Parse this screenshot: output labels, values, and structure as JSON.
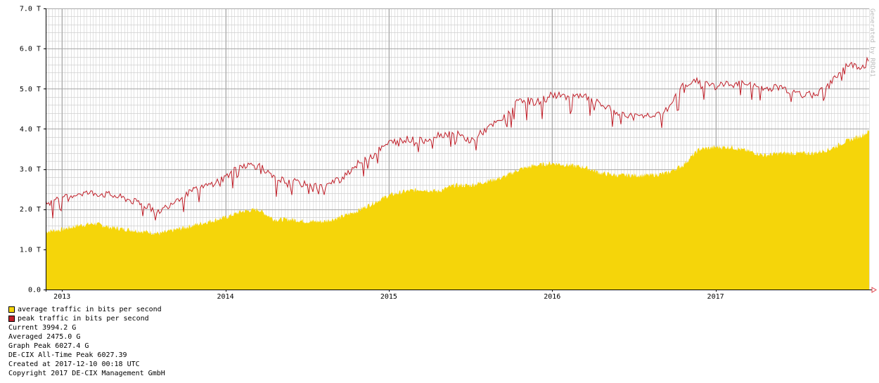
{
  "chart_data": {
    "type": "area",
    "credit": "Generated by RRD41",
    "y_unit": "bits per second",
    "ylim": [
      0,
      7.0
    ],
    "y_ticks": [
      "0.0",
      "1.0 T",
      "2.0 T",
      "3.0 T",
      "4.0 T",
      "5.0 T",
      "6.0 T",
      "7.0 T"
    ],
    "y_tick_values": [
      0,
      1,
      2,
      3,
      4,
      5,
      6,
      7
    ],
    "x_range": [
      2012.9,
      2017.94
    ],
    "x_ticks": [
      "2013",
      "2014",
      "2015",
      "2016",
      "2017"
    ],
    "x_tick_values": [
      2013.0,
      2014.0,
      2015.0,
      2016.0,
      2017.0
    ],
    "grid": true,
    "legend_position": "bottom-left",
    "series": [
      {
        "name": "average traffic in bits per second",
        "color": "#f5d50a",
        "style": "area",
        "x": [
          2012.9,
          2013.0,
          2013.1,
          2013.2,
          2013.3,
          2013.4,
          2013.5,
          2013.6,
          2013.7,
          2013.8,
          2013.9,
          2014.0,
          2014.1,
          2014.2,
          2014.3,
          2014.4,
          2014.5,
          2014.6,
          2014.7,
          2014.8,
          2014.9,
          2015.0,
          2015.1,
          2015.2,
          2015.3,
          2015.4,
          2015.5,
          2015.6,
          2015.7,
          2015.8,
          2015.9,
          2016.0,
          2016.1,
          2016.2,
          2016.3,
          2016.4,
          2016.5,
          2016.6,
          2016.7,
          2016.8,
          2016.9,
          2017.0,
          2017.1,
          2017.2,
          2017.3,
          2017.4,
          2017.5,
          2017.6,
          2017.7,
          2017.8,
          2017.9,
          2017.94
        ],
        "y": [
          1.45,
          1.5,
          1.6,
          1.65,
          1.55,
          1.5,
          1.45,
          1.4,
          1.5,
          1.6,
          1.7,
          1.8,
          1.95,
          2.0,
          1.75,
          1.75,
          1.7,
          1.7,
          1.8,
          1.95,
          2.15,
          2.35,
          2.45,
          2.5,
          2.45,
          2.6,
          2.6,
          2.7,
          2.8,
          3.0,
          3.1,
          3.15,
          3.1,
          3.05,
          2.9,
          2.85,
          2.85,
          2.85,
          2.9,
          3.1,
          3.5,
          3.55,
          3.55,
          3.45,
          3.35,
          3.4,
          3.4,
          3.4,
          3.5,
          3.7,
          3.85,
          3.95
        ]
      },
      {
        "name": "peak traffic in bits per second",
        "color": "#c0202a",
        "style": "line",
        "x": [
          2012.9,
          2013.0,
          2013.1,
          2013.2,
          2013.3,
          2013.4,
          2013.5,
          2013.6,
          2013.7,
          2013.8,
          2013.9,
          2014.0,
          2014.1,
          2014.2,
          2014.3,
          2014.4,
          2014.5,
          2014.6,
          2014.7,
          2014.8,
          2014.9,
          2015.0,
          2015.1,
          2015.2,
          2015.3,
          2015.4,
          2015.5,
          2015.6,
          2015.7,
          2015.8,
          2015.9,
          2016.0,
          2016.1,
          2016.2,
          2016.3,
          2016.4,
          2016.5,
          2016.6,
          2016.7,
          2016.8,
          2016.9,
          2017.0,
          2017.1,
          2017.2,
          2017.3,
          2017.4,
          2017.5,
          2017.6,
          2017.7,
          2017.8,
          2017.9,
          2017.94
        ],
        "y": [
          2.15,
          2.25,
          2.4,
          2.4,
          2.35,
          2.25,
          2.1,
          1.95,
          2.25,
          2.45,
          2.6,
          2.8,
          3.1,
          3.1,
          2.75,
          2.7,
          2.6,
          2.55,
          2.75,
          3.1,
          3.35,
          3.65,
          3.75,
          3.7,
          3.85,
          3.9,
          3.7,
          4.0,
          4.25,
          4.75,
          4.65,
          4.85,
          4.8,
          4.8,
          4.6,
          4.4,
          4.3,
          4.35,
          4.45,
          5.1,
          5.2,
          5.05,
          5.15,
          5.1,
          5.0,
          5.05,
          4.85,
          4.85,
          5.1,
          5.6,
          5.55,
          5.8
        ]
      }
    ],
    "stats": {
      "current": "Current 3994.2 G",
      "averaged": "Averaged 2475.0 G",
      "graph_peak": "Graph Peak 6027.4 G",
      "all_time_peak": "DE-CIX All-Time Peak 6027.39",
      "created": "Created at 2017-12-10 00:18 UTC",
      "copyright": "Copyright 2017 DE-CIX Management GmbH"
    }
  },
  "colors": {
    "grid": "#cfcfcf",
    "major_grid": "#a8a8a8",
    "axis": "#000000",
    "arrow": "#e0404a"
  }
}
